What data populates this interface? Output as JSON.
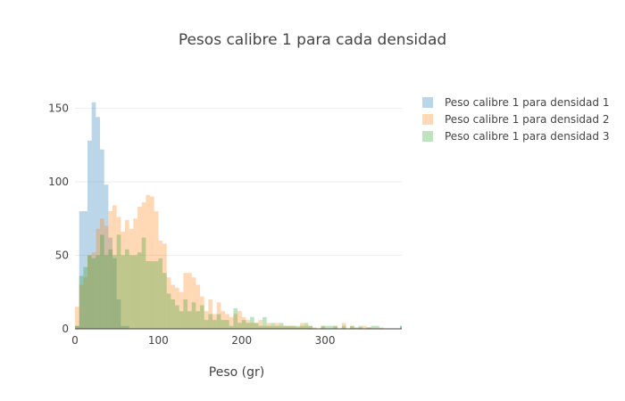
{
  "chart_data": {
    "type": "bar",
    "title": "Pesos calibre 1 para cada densidad",
    "xlabel": "Peso (gr)",
    "ylabel": "",
    "xlim": [
      0,
      392
    ],
    "ylim": [
      0,
      163
    ],
    "bin_width": 5,
    "x_ticks": [
      0,
      100,
      200,
      300
    ],
    "y_ticks": [
      0,
      50,
      100,
      150
    ],
    "grid": "horizontal",
    "legend_position": "top-right",
    "bin_start": [
      0,
      5,
      10,
      15,
      20,
      25,
      30,
      35,
      40,
      45,
      50,
      55,
      60,
      65,
      70,
      75,
      80,
      85,
      90,
      95,
      100,
      105,
      110,
      115,
      120,
      125,
      130,
      135,
      140,
      145,
      150,
      155,
      160,
      165,
      170,
      175,
      180,
      185,
      190,
      195,
      200,
      205,
      210,
      215,
      220,
      225,
      230,
      235,
      240,
      245,
      250,
      255,
      260,
      265,
      270,
      275,
      280,
      285,
      290,
      295,
      300,
      305,
      310,
      315,
      320,
      325,
      330,
      335,
      340,
      345,
      350,
      355,
      360,
      365,
      370,
      375,
      380,
      385,
      390
    ],
    "series": [
      {
        "name": "Peso calibre 1 para densidad 1",
        "color": "#1f77b4",
        "opacity": 0.3,
        "values": [
          2,
          80,
          80,
          128,
          154,
          144,
          122,
          98,
          62,
          48,
          20,
          2,
          2,
          0,
          0,
          0,
          0,
          0,
          0,
          0,
          0,
          0,
          0,
          0,
          0,
          0,
          0,
          0,
          0,
          0,
          0,
          0,
          0,
          0,
          0,
          0,
          0,
          0,
          0,
          0,
          0,
          0,
          0,
          0,
          0,
          0,
          0,
          0,
          0,
          0,
          0,
          0,
          0,
          0,
          0,
          0,
          0,
          0,
          0,
          0,
          0,
          0,
          0,
          0,
          0,
          0,
          0,
          0,
          0,
          0,
          0,
          0,
          0,
          0,
          0,
          0,
          0,
          0,
          2
        ]
      },
      {
        "name": "Peso calibre 1 para densidad 2",
        "color": "#ff7f0e",
        "opacity": 0.3,
        "values": [
          15,
          30,
          35,
          50,
          52,
          68,
          75,
          70,
          80,
          84,
          76,
          66,
          74,
          68,
          75,
          83,
          86,
          91,
          90,
          80,
          60,
          58,
          35,
          30,
          28,
          25,
          38,
          38,
          35,
          30,
          22,
          12,
          20,
          10,
          18,
          12,
          10,
          8,
          10,
          12,
          8,
          6,
          4,
          4,
          6,
          2,
          4,
          2,
          4,
          2,
          2,
          2,
          2,
          1,
          4,
          2,
          2,
          1,
          0,
          2,
          0,
          0,
          2,
          0,
          4,
          0,
          2,
          0,
          1,
          2,
          1,
          0,
          0,
          1,
          0,
          0,
          0,
          0,
          0
        ]
      },
      {
        "name": "Peso calibre 1 para densidad 3",
        "color": "#2ca02c",
        "opacity": 0.3,
        "values": [
          2,
          36,
          42,
          50,
          48,
          50,
          64,
          50,
          54,
          50,
          64,
          50,
          54,
          50,
          50,
          52,
          62,
          46,
          46,
          46,
          48,
          38,
          24,
          20,
          16,
          12,
          20,
          12,
          18,
          12,
          16,
          6,
          10,
          6,
          10,
          6,
          6,
          2,
          14,
          4,
          6,
          4,
          8,
          4,
          2,
          8,
          2,
          4,
          2,
          4,
          2,
          2,
          2,
          2,
          2,
          4,
          2,
          0,
          0,
          2,
          2,
          2,
          2,
          0,
          2,
          0,
          2,
          1,
          2,
          0,
          1,
          2,
          2,
          0,
          0,
          0,
          0,
          0,
          2
        ]
      }
    ]
  }
}
